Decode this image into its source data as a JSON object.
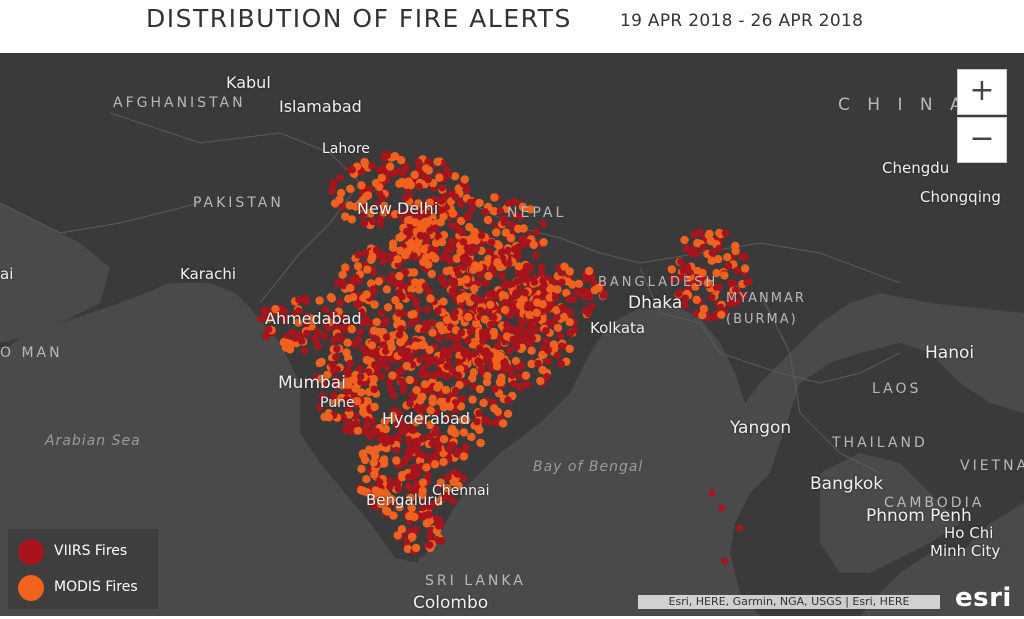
{
  "header": {
    "title": "DISTRIBUTION OF FIRE ALERTS",
    "date_range": "19 APR 2018 - 26 APR 2018"
  },
  "map": {
    "labels": {
      "kabul": "Kabul",
      "islamabad": "Islamabad",
      "afghanistan": "AFGHANISTAN",
      "lahore": "Lahore",
      "pakistan": "PAKISTAN",
      "new_delhi": "New Delhi",
      "nepal": "NEPAL",
      "china": "C H I N A",
      "chengdu": "Chengdu",
      "chongqing": "Chongqing",
      "karachi": "Karachi",
      "bangladesh": "BANGLADESH",
      "dhaka": "Dhaka",
      "myanmar": "MYANMAR",
      "burma": "(BURMA)",
      "ahmedabad": "Ahmedabad",
      "kolkata": "Kolkata",
      "oman": "O MAN",
      "mumbai": "Mumbai",
      "pune": "Pune",
      "hyderabad": "Hyderabad",
      "hanoi": "Hanoi",
      "laos": "LAOS",
      "arabian_sea": "Arabian Sea",
      "yangon": "Yangon",
      "thailand": "THAILAND",
      "bay_of_bengal": "Bay of Bengal",
      "vietnam": "VIETNA",
      "chennai": "Chennai",
      "bangkok": "Bangkok",
      "bengaluru": "Bengaluru",
      "cambodia": "CAMBODIA",
      "phnom_penh": "Phnom Penh",
      "ho_chi_minh_1": "Ho Chi",
      "ho_chi_minh_2": "Minh City",
      "sri_lanka": "SRI LANKA",
      "colombo": "Colombo",
      "left_edge": "ai"
    }
  },
  "zoom": {
    "in_label": "+",
    "out_label": "−"
  },
  "legend": {
    "items": [
      {
        "label": "VIIRS Fires",
        "color": "#a8141c"
      },
      {
        "label": "MODIS Fires",
        "color": "#f0621e"
      }
    ]
  },
  "attribution": "Esri, HERE, Garmin, NGA, USGS | Esri, HERE",
  "logo": "esri",
  "colors": {
    "land": "#4a4a4a",
    "water": "#3a3a3a",
    "viirs": "#a8141c",
    "modis": "#f0621e"
  }
}
